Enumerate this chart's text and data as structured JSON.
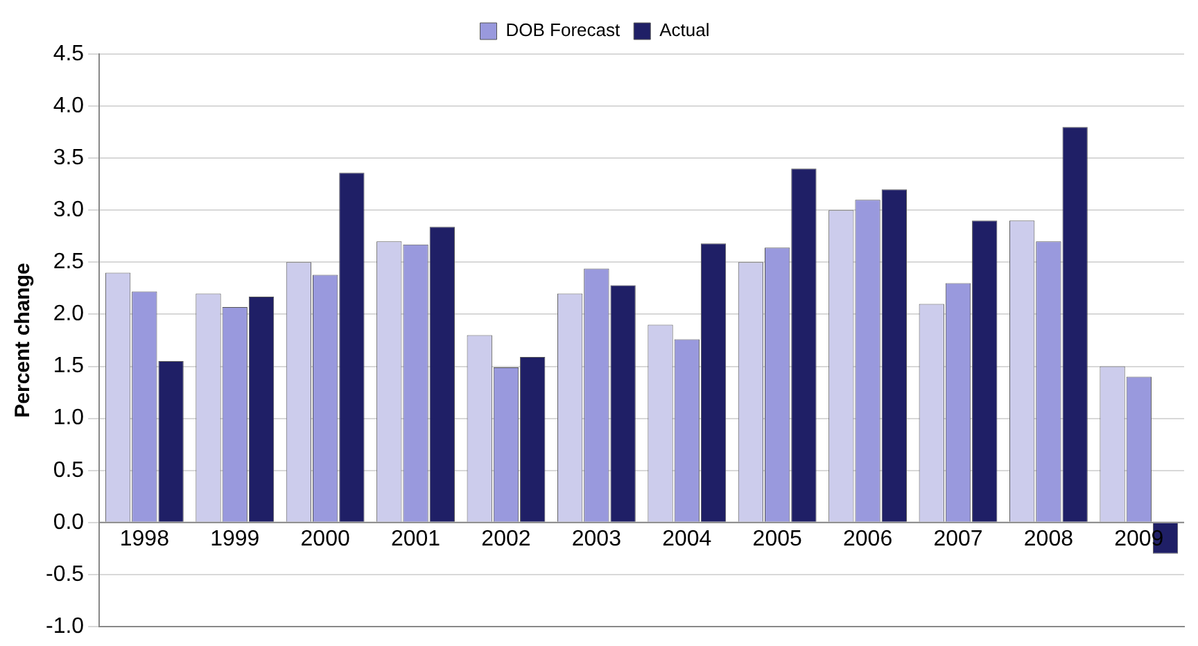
{
  "chart_data": {
    "type": "bar",
    "ylabel": "Percent change",
    "categories": [
      "1998",
      "1999",
      "2000",
      "2001",
      "2002",
      "2003",
      "2004",
      "2005",
      "2006",
      "2007",
      "2008",
      "2009"
    ],
    "series": [
      {
        "color": "#ccccec",
        "values": [
          2.4,
          2.2,
          2.5,
          2.7,
          1.8,
          2.2,
          1.9,
          2.5,
          3.0,
          2.1,
          2.9,
          1.5
        ]
      },
      {
        "name": "DOB Forecast",
        "color": "#9999dd",
        "values": [
          2.22,
          2.07,
          2.38,
          2.67,
          1.49,
          2.44,
          1.76,
          2.64,
          3.1,
          2.3,
          2.7,
          1.4
        ]
      },
      {
        "name": "Actual",
        "color": "#1f1f66",
        "values": [
          1.55,
          2.17,
          3.36,
          2.84,
          1.59,
          2.28,
          2.68,
          3.4,
          3.2,
          2.9,
          3.8,
          -0.3
        ]
      }
    ],
    "ylim": [
      -1.0,
      4.5
    ],
    "yticks": [
      {
        "value": -1.0,
        "label": "-1.0"
      },
      {
        "value": -0.5,
        "label": "-0.5"
      },
      {
        "value": 0,
        "label": "0.0"
      },
      {
        "value": 0.5,
        "label": "0.5"
      },
      {
        "value": 1.0,
        "label": "1.0"
      },
      {
        "value": 1.5,
        "label": "1.5"
      },
      {
        "value": 2.0,
        "label": "2.0"
      },
      {
        "value": 2.5,
        "label": "2.5"
      },
      {
        "value": 3.0,
        "label": "3.0"
      },
      {
        "value": 3.5,
        "label": "3.5"
      },
      {
        "value": 4.0,
        "label": "4.0"
      },
      {
        "value": 4.5,
        "label": "4.5"
      }
    ],
    "grid": "y",
    "legend": "top"
  }
}
